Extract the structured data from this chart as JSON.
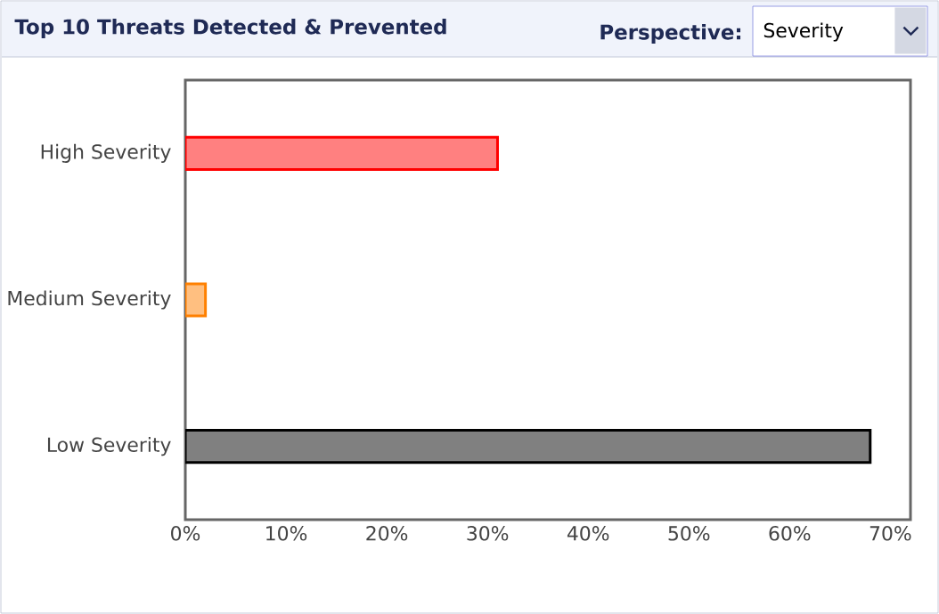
{
  "chart_data": {
    "type": "bar",
    "orientation": "horizontal",
    "title": "Top 10 Threats Detected & Prevented",
    "annotations": [
      "Perspective:",
      "Severity"
    ],
    "categories": [
      "High Severity",
      "Medium Severity",
      "Low Severity"
    ],
    "values": [
      31,
      2,
      68
    ],
    "colors": [
      "#ff0000",
      "#ff8000",
      "#000000"
    ],
    "xlim": [
      0,
      72
    ],
    "xticks": [
      {
        "value": 0,
        "label": "0%"
      },
      {
        "value": 10,
        "label": "10%"
      },
      {
        "value": 20,
        "label": "20%"
      },
      {
        "value": 30,
        "label": "30%"
      },
      {
        "value": 40,
        "label": "40%"
      },
      {
        "value": 50,
        "label": "50%"
      },
      {
        "value": 60,
        "label": "60%"
      },
      {
        "value": 70,
        "label": "70%"
      }
    ],
    "grid": false
  }
}
